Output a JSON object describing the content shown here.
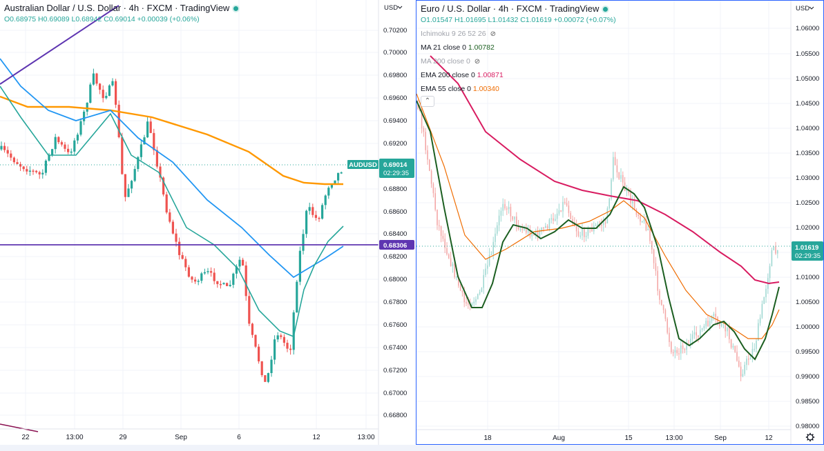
{
  "left": {
    "title": "Australian Dollar / U.S. Dollar · 4h · FXCM · TradingView",
    "ohlc": "O0.68975 H0.69089 L0.68942 C0.69014 +0.00039 (+0.06%)",
    "currency": "USD",
    "price_badge": {
      "symbol": "AUDUSD",
      "price": "0.69014",
      "countdown": "02:29:35"
    },
    "level_badge": "0.68306",
    "y_ticks": [
      "0.70200",
      "0.70000",
      "0.69800",
      "0.69600",
      "0.69400",
      "0.69200",
      "0.68800",
      "0.68600",
      "0.68400",
      "0.68200",
      "0.68000",
      "0.67800",
      "0.67600",
      "0.67400",
      "0.67200",
      "0.67000",
      "0.66800"
    ],
    "x_ticks": [
      "22",
      "13:00",
      "29",
      "Sep",
      "6",
      "12",
      "13:00"
    ]
  },
  "right": {
    "title": "Euro / U.S. Dollar · 4h · FXCM · TradingView",
    "ohlc": "O1.01547 H1.01695 L1.01432 C1.01619 +0.00072 (+0.07%)",
    "currency": "USD",
    "indicators": [
      {
        "label": "Ichimoku 9 26 52 26",
        "value": "",
        "hidden": true
      },
      {
        "label": "MA 21 close 0",
        "value": "1.00782",
        "hidden": false,
        "color": "#1b5e20"
      },
      {
        "label": "MA 200 close 0",
        "value": "",
        "hidden": true
      },
      {
        "label": "EMA 200 close 0",
        "value": "1.00871",
        "hidden": false,
        "color": "#d81b60"
      },
      {
        "label": "EMA 55 close 0",
        "value": "1.00340",
        "hidden": false,
        "color": "#ef6c00"
      }
    ],
    "price_badge": {
      "price": "1.01619",
      "countdown": "02:29:35"
    },
    "y_ticks": [
      "1.06000",
      "1.05500",
      "1.05000",
      "1.04500",
      "1.04000",
      "1.03500",
      "1.03000",
      "1.02500",
      "1.02000",
      "1.01500",
      "1.01000",
      "1.00500",
      "1.00000",
      "0.99500",
      "0.99000",
      "0.98500",
      "0.98000"
    ],
    "x_ticks": [
      "18",
      "Aug",
      "15",
      "13:00",
      "Sep",
      "12"
    ]
  },
  "colors": {
    "up": "#26a69a",
    "down": "#ef5350",
    "grid": "#f0f3fa",
    "accent": "#2962ff",
    "level": "#5e35b1"
  }
}
